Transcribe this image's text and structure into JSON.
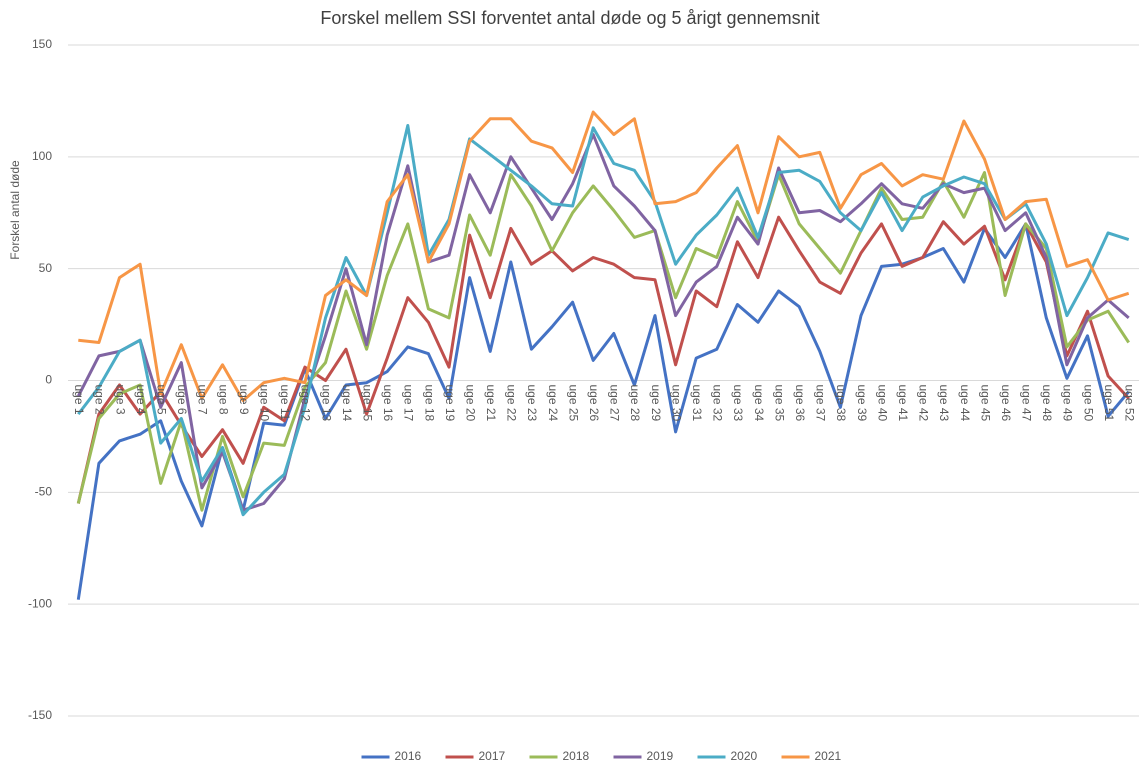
{
  "chart_data": {
    "type": "line",
    "title": "Forskel mellem SSI forventet antal døde og 5 årigt gennemsnit",
    "y_label": "Forskel antal døde",
    "categories": [
      "uge 1",
      "uge 2",
      "uge 3",
      "uge 4",
      "uge 5",
      "uge 6",
      "uge 7",
      "uge 8",
      "uge 9",
      "uge 10",
      "uge 11",
      "uge 12",
      "uge 13",
      "uge 14",
      "uge 15",
      "uge 16",
      "uge 17",
      "uge 18",
      "uge 19",
      "uge 20",
      "uge 21",
      "uge 22",
      "uge 23",
      "uge 24",
      "uge 25",
      "uge 26",
      "uge 27",
      "uge 28",
      "uge 29",
      "uge 30",
      "uge 31",
      "uge 32",
      "uge 33",
      "uge 34",
      "uge 35",
      "uge 36",
      "uge 37",
      "uge 38",
      "uge 39",
      "uge 40",
      "uge 41",
      "uge 42",
      "uge 43",
      "uge 44",
      "uge 45",
      "uge 46",
      "uge 47",
      "uge 48",
      "uge 49",
      "uge 50",
      "uge 51",
      "uge 52"
    ],
    "series": [
      {
        "name": "2016",
        "color": "#4472c4",
        "values": [
          -98,
          -37,
          -27,
          -24,
          -18,
          -45,
          -65,
          -30,
          -58,
          -19,
          -20,
          5,
          -17,
          -2,
          -1,
          4,
          15,
          12,
          -8,
          46,
          13,
          53,
          14,
          24,
          35,
          9,
          21,
          -2,
          29,
          -23,
          10,
          14,
          34,
          26,
          40,
          33,
          13,
          -12,
          29,
          51,
          52,
          55,
          59,
          44,
          68,
          55,
          70,
          28,
          1,
          20,
          -16,
          -5
        ]
      },
      {
        "name": "2017",
        "color": "#c0504d",
        "values": [
          -55,
          -15,
          -2,
          -15,
          -5,
          -20,
          -34,
          -22,
          -37,
          -12,
          -18,
          6,
          0,
          14,
          -15,
          10,
          37,
          26,
          6,
          65,
          37,
          68,
          52,
          58,
          49,
          55,
          52,
          46,
          45,
          7,
          40,
          33,
          62,
          46,
          73,
          58,
          44,
          39,
          57,
          70,
          51,
          55,
          71,
          61,
          69,
          45,
          70,
          53,
          11,
          31,
          2,
          -8
        ]
      },
      {
        "name": "2018",
        "color": "#9bbb59",
        "values": [
          -55,
          -17,
          -6,
          -2,
          -46,
          -18,
          -58,
          -25,
          -52,
          -28,
          -29,
          -3,
          8,
          40,
          14,
          47,
          70,
          32,
          28,
          74,
          56,
          92,
          78,
          58,
          75,
          87,
          76,
          64,
          67,
          37,
          59,
          55,
          80,
          62,
          92,
          70,
          59,
          48,
          67,
          86,
          72,
          73,
          89,
          73,
          93,
          38,
          70,
          59,
          15,
          27,
          31,
          17
        ]
      },
      {
        "name": "2019",
        "color": "#8064a2",
        "values": [
          -7,
          11,
          13,
          18,
          -12,
          8,
          -48,
          -32,
          -58,
          -55,
          -44,
          -8,
          20,
          50,
          16,
          65,
          96,
          53,
          56,
          92,
          75,
          100,
          86,
          72,
          88,
          110,
          87,
          78,
          67,
          29,
          44,
          51,
          73,
          61,
          95,
          75,
          76,
          71,
          79,
          88,
          79,
          77,
          88,
          84,
          86,
          67,
          75,
          55,
          7,
          28,
          36,
          28
        ]
      },
      {
        "name": "2020",
        "color": "#4bacc6",
        "values": [
          -15,
          -3,
          13,
          18,
          -28,
          -17,
          -45,
          -30,
          -60,
          -50,
          -42,
          -12,
          28,
          55,
          38,
          75,
          114,
          56,
          72,
          108,
          101,
          94,
          87,
          79,
          78,
          113,
          97,
          94,
          80,
          52,
          65,
          74,
          86,
          64,
          93,
          94,
          89,
          75,
          67,
          84,
          67,
          82,
          87,
          91,
          88,
          72,
          79,
          61,
          29,
          46,
          66,
          63
        ]
      },
      {
        "name": "2021",
        "color": "#f79646",
        "values": [
          18,
          17,
          46,
          52,
          -6,
          16,
          -8,
          7,
          -9,
          -1,
          1,
          -1,
          38,
          45,
          38,
          80,
          92,
          53,
          70,
          107,
          117,
          117,
          107,
          104,
          93,
          120,
          110,
          117,
          79,
          80,
          84,
          95,
          105,
          75,
          109,
          100,
          102,
          77,
          92,
          97,
          87,
          92,
          90,
          116,
          99,
          72,
          80,
          81,
          51,
          54,
          36,
          39
        ]
      }
    ],
    "ylim": [
      -150,
      150
    ],
    "yticks": [
      -150,
      -100,
      -50,
      0,
      50,
      100,
      150
    ],
    "grid": true,
    "legend": "bottom"
  }
}
